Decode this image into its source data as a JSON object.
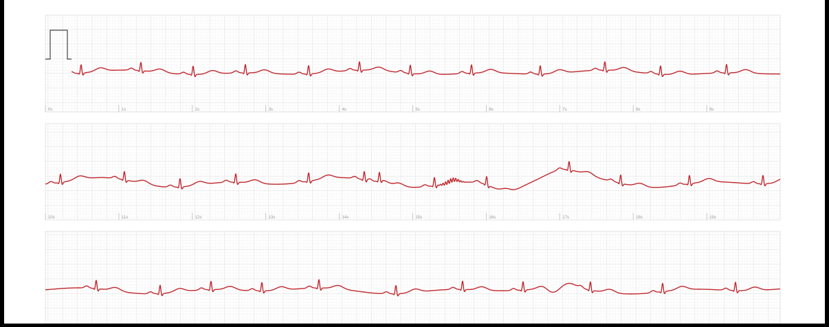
{
  "strips": [
    {
      "labels": [
        "0s",
        "1s",
        "2s",
        "3s",
        "4s",
        "5s",
        "6s",
        "7s",
        "8s",
        "9s"
      ]
    },
    {
      "labels": [
        "10s",
        "11s",
        "12s",
        "13s",
        "14s",
        "15s",
        "16s",
        "17s",
        "18s",
        "19s"
      ]
    }
  ]
}
